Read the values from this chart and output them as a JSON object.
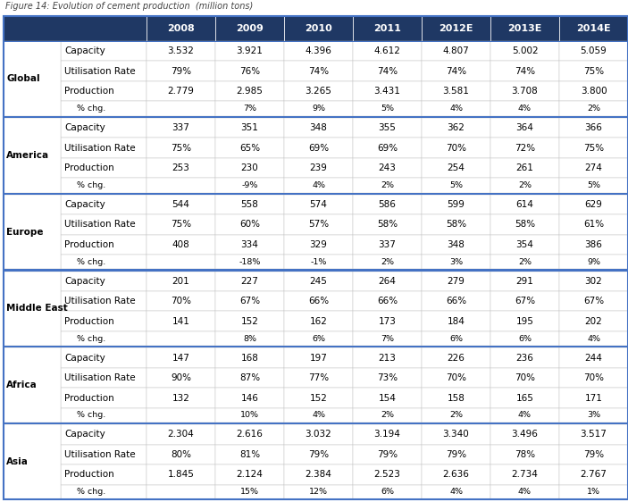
{
  "title": "Figure 14: Evolution of cement production  (million tons)",
  "header_bg": "#1F3864",
  "header_text_color": "#FFFFFF",
  "header_cols": [
    "2008",
    "2009",
    "2010",
    "2011",
    "2012E",
    "2013E",
    "2014E"
  ],
  "regions": [
    "Global",
    "America",
    "Europe",
    "Middle East",
    "Africa",
    "Asia"
  ],
  "rows": {
    "Global": {
      "Capacity": [
        "3.532",
        "3.921",
        "4.396",
        "4.612",
        "4.807",
        "5.002",
        "5.059"
      ],
      "Utilisation Rate": [
        "79%",
        "76%",
        "74%",
        "74%",
        "74%",
        "74%",
        "75%"
      ],
      "Production": [
        "2.779",
        "2.985",
        "3.265",
        "3.431",
        "3.581",
        "3.708",
        "3.800"
      ],
      "% chg.": [
        "",
        "7%",
        "9%",
        "5%",
        "4%",
        "4%",
        "2%"
      ]
    },
    "America": {
      "Capacity": [
        "337",
        "351",
        "348",
        "355",
        "362",
        "364",
        "366"
      ],
      "Utilisation Rate": [
        "75%",
        "65%",
        "69%",
        "69%",
        "70%",
        "72%",
        "75%"
      ],
      "Production": [
        "253",
        "230",
        "239",
        "243",
        "254",
        "261",
        "274"
      ],
      "% chg.": [
        "",
        "-9%",
        "4%",
        "2%",
        "5%",
        "2%",
        "5%"
      ]
    },
    "Europe": {
      "Capacity": [
        "544",
        "558",
        "574",
        "586",
        "599",
        "614",
        "629"
      ],
      "Utilisation Rate": [
        "75%",
        "60%",
        "57%",
        "58%",
        "58%",
        "58%",
        "61%"
      ],
      "Production": [
        "408",
        "334",
        "329",
        "337",
        "348",
        "354",
        "386"
      ],
      "% chg.": [
        "",
        "-18%",
        "-1%",
        "2%",
        "3%",
        "2%",
        "9%"
      ]
    },
    "Middle East": {
      "Capacity": [
        "201",
        "227",
        "245",
        "264",
        "279",
        "291",
        "302"
      ],
      "Utilisation Rate": [
        "70%",
        "67%",
        "66%",
        "66%",
        "66%",
        "67%",
        "67%"
      ],
      "Production": [
        "141",
        "152",
        "162",
        "173",
        "184",
        "195",
        "202"
      ],
      "% chg.": [
        "",
        "8%",
        "6%",
        "7%",
        "6%",
        "6%",
        "4%"
      ]
    },
    "Africa": {
      "Capacity": [
        "147",
        "168",
        "197",
        "213",
        "226",
        "236",
        "244"
      ],
      "Utilisation Rate": [
        "90%",
        "87%",
        "77%",
        "73%",
        "70%",
        "70%",
        "70%"
      ],
      "Production": [
        "132",
        "146",
        "152",
        "154",
        "158",
        "165",
        "171"
      ],
      "% chg.": [
        "",
        "10%",
        "4%",
        "2%",
        "2%",
        "4%",
        "3%"
      ]
    },
    "Asia": {
      "Capacity": [
        "2.304",
        "2.616",
        "3.032",
        "3.194",
        "3.340",
        "3.496",
        "3.517"
      ],
      "Utilisation Rate": [
        "80%",
        "81%",
        "79%",
        "79%",
        "79%",
        "78%",
        "79%"
      ],
      "Production": [
        "1.845",
        "2.124",
        "2.384",
        "2.523",
        "2.636",
        "2.734",
        "2.767"
      ],
      "% chg.": [
        "",
        "15%",
        "12%",
        "6%",
        "4%",
        "4%",
        "1%"
      ]
    }
  },
  "row_order": [
    "Capacity",
    "Utilisation Rate",
    "Production",
    "% chg."
  ],
  "separator_color": "#4472C4",
  "text_color": "#000000",
  "region_text_color": "#000000",
  "font_size_header": 8,
  "font_size_data": 7.5,
  "font_size_region": 7.5,
  "font_size_label": 7.5,
  "font_size_pct": 6.8,
  "border_color": "#C0C0C0",
  "outer_border_color": "#4472C4"
}
